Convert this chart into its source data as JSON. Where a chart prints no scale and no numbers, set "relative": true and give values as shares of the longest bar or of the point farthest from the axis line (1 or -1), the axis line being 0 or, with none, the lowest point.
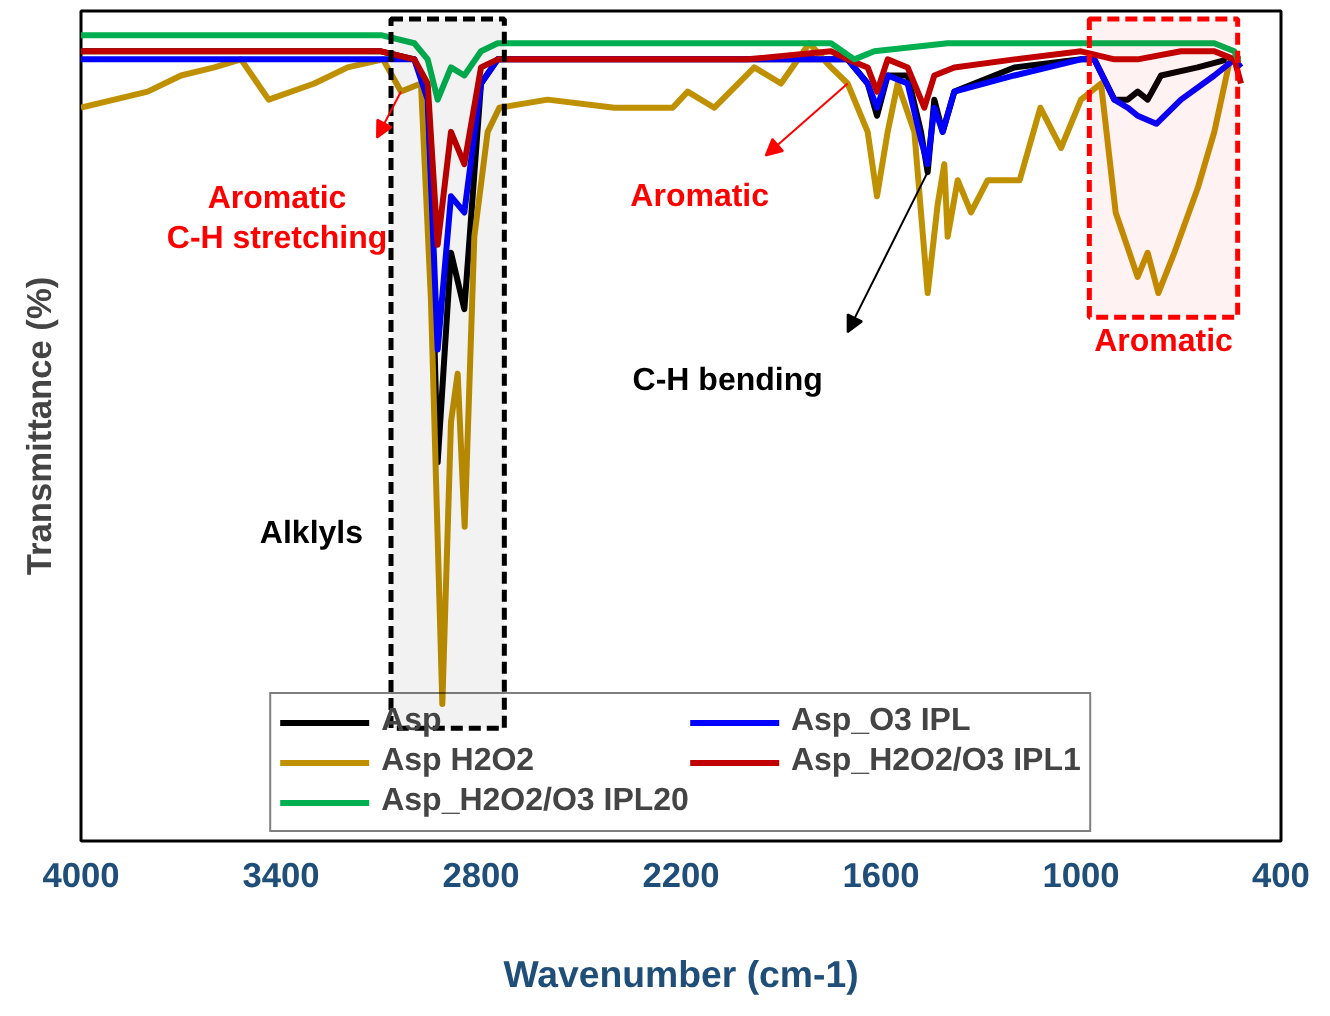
{
  "chart_data": {
    "type": "line",
    "relative": true,
    "xlabel": "Wavenumber (cm-1)",
    "ylabel": "Transmittance (%)",
    "xlim": [
      4000,
      400
    ],
    "xticks": [
      4000,
      3400,
      2800,
      2200,
      1600,
      1000,
      400
    ],
    "tick_labels": "x",
    "grid": false,
    "legend": "bottom",
    "marker": "none",
    "line_style": "solid",
    "series": [
      {
        "name": "Asp",
        "color": "#000000",
        "x": [
          4000,
          3500,
          3100,
          3000,
          2960,
          2930,
          2890,
          2850,
          2800,
          2750,
          2000,
          1750,
          1700,
          1640,
          1612,
          1580,
          1520,
          1480,
          1460,
          1440,
          1415,
          1380,
          1200,
          1000,
          960,
          900,
          860,
          830,
          800,
          760,
          650,
          560,
          520
        ],
        "values": [
          0.98,
          0.98,
          0.98,
          0.97,
          0.93,
          0.47,
          0.73,
          0.66,
          0.94,
          0.97,
          0.97,
          0.97,
          0.97,
          0.94,
          0.9,
          0.95,
          0.95,
          0.88,
          0.83,
          0.92,
          0.88,
          0.93,
          0.96,
          0.97,
          0.97,
          0.92,
          0.92,
          0.93,
          0.92,
          0.95,
          0.96,
          0.97,
          0.97
        ]
      },
      {
        "name": "Asp H2O2",
        "color": "#bf9000",
        "x": [
          4000,
          3900,
          3800,
          3700,
          3600,
          3520,
          3437,
          3300,
          3200,
          3094,
          3040,
          2980,
          2950,
          2916,
          2890,
          2870,
          2849,
          2820,
          2780,
          2745,
          2600,
          2400,
          2225,
          2180,
          2100,
          1980,
          1900,
          1815,
          1750,
          1700,
          1640,
          1612,
          1580,
          1550,
          1500,
          1460,
          1430,
          1410,
          1400,
          1370,
          1330,
          1280,
          1184,
          1122,
          1060,
          1000,
          940,
          896,
          830,
          800,
          768,
          720,
          650,
          600,
          553,
          520
        ],
        "values": [
          0.91,
          0.92,
          0.93,
          0.95,
          0.96,
          0.97,
          0.92,
          0.94,
          0.96,
          0.97,
          0.93,
          0.94,
          0.67,
          0.17,
          0.52,
          0.58,
          0.39,
          0.75,
          0.88,
          0.91,
          0.92,
          0.91,
          0.91,
          0.93,
          0.91,
          0.96,
          0.94,
          0.99,
          0.96,
          0.94,
          0.88,
          0.8,
          0.88,
          0.94,
          0.88,
          0.68,
          0.79,
          0.84,
          0.75,
          0.82,
          0.78,
          0.82,
          0.82,
          0.91,
          0.86,
          0.92,
          0.94,
          0.78,
          0.7,
          0.73,
          0.68,
          0.73,
          0.81,
          0.88,
          0.97,
          0.97
        ]
      },
      {
        "name": "Asp_O3 IPL",
        "color": "#0000ff",
        "x": [
          4000,
          3600,
          3400,
          3200,
          3100,
          3000,
          2960,
          2930,
          2890,
          2850,
          2800,
          2750,
          2000,
          1750,
          1700,
          1640,
          1612,
          1580,
          1520,
          1480,
          1460,
          1440,
          1415,
          1380,
          1200,
          1000,
          960,
          900,
          860,
          830,
          774,
          700,
          600,
          540,
          520
        ],
        "values": [
          0.97,
          0.97,
          0.97,
          0.97,
          0.97,
          0.97,
          0.92,
          0.61,
          0.8,
          0.78,
          0.94,
          0.97,
          0.97,
          0.97,
          0.97,
          0.94,
          0.91,
          0.95,
          0.94,
          0.87,
          0.84,
          0.91,
          0.88,
          0.93,
          0.95,
          0.97,
          0.97,
          0.92,
          0.91,
          0.9,
          0.89,
          0.92,
          0.95,
          0.97,
          0.96
        ]
      },
      {
        "name": "Asp_H2O2/O3 IPL1",
        "color": "#c00000",
        "x": [
          4000,
          3500,
          3100,
          3000,
          2960,
          2930,
          2890,
          2850,
          2800,
          2750,
          2000,
          1750,
          1700,
          1640,
          1612,
          1580,
          1520,
          1470,
          1440,
          1380,
          1200,
          1000,
          900,
          830,
          700,
          600,
          540,
          520
        ],
        "values": [
          0.98,
          0.98,
          0.98,
          0.97,
          0.94,
          0.74,
          0.88,
          0.84,
          0.96,
          0.97,
          0.97,
          0.98,
          0.97,
          0.96,
          0.93,
          0.97,
          0.96,
          0.91,
          0.95,
          0.96,
          0.97,
          0.98,
          0.97,
          0.97,
          0.98,
          0.98,
          0.97,
          0.94
        ]
      },
      {
        "name": "Asp_H2O2/O3 IPL20",
        "color": "#00b050",
        "x": [
          4000,
          3500,
          3100,
          3000,
          2960,
          2930,
          2890,
          2850,
          2800,
          2750,
          2000,
          1750,
          1680,
          1620,
          1400,
          1000,
          600,
          540,
          530,
          520
        ],
        "values": [
          1,
          1,
          1,
          0.99,
          0.97,
          0.92,
          0.96,
          0.95,
          0.98,
          0.99,
          0.99,
          0.99,
          0.97,
          0.98,
          0.99,
          0.99,
          0.99,
          0.98,
          0.97,
          0.97
        ]
      }
    ],
    "bands": [
      {
        "axis": "x",
        "from": 3070,
        "to": 2730,
        "label": "Alklyls",
        "color": "#000000"
      },
      {
        "axis": "x",
        "from": 975,
        "to": 530,
        "label": "Aromatic",
        "color": "#ff0000"
      }
    ],
    "annotations": [
      {
        "text": "Aromatic\nC-H stretching",
        "x": 3040,
        "y": 0.93
      },
      {
        "text": "Aromatic",
        "x": 1700,
        "y": 0.94
      },
      {
        "text": "C-H bending",
        "x": 1460,
        "y": 0.83
      }
    ]
  }
}
